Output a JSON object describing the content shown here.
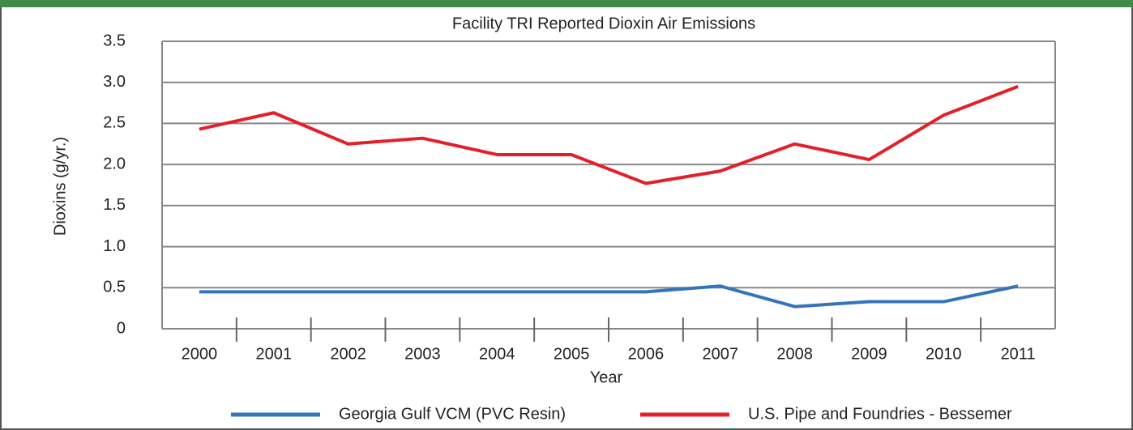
{
  "chart_data": {
    "type": "line",
    "title": "Facility TRI Reported Dioxin Air Emissions",
    "x_label": "Year",
    "y_label": "Dioxins (g/yr.)",
    "categories": [
      "2000",
      "2001",
      "2002",
      "2003",
      "2004",
      "2005",
      "2006",
      "2007",
      "2008",
      "2009",
      "2010",
      "2011"
    ],
    "series": [
      {
        "name": "Georgia Gulf VCM (PVC Resin)",
        "color": "#3474bc",
        "values": [
          0.45,
          0.45,
          0.45,
          0.45,
          0.45,
          0.45,
          0.45,
          0.52,
          0.27,
          0.33,
          0.33,
          0.52
        ]
      },
      {
        "name": "U.S. Pipe and Foundries - Bessemer",
        "color": "#e3202a",
        "values": [
          2.43,
          2.63,
          2.25,
          2.32,
          2.12,
          2.12,
          1.77,
          1.92,
          2.25,
          2.06,
          2.6,
          2.95
        ]
      }
    ],
    "ylim": [
      0,
      3.5
    ],
    "yticks": [
      0,
      0.5,
      {
        "value": 1,
        "label": "1.0"
      },
      1.5,
      {
        "value": 2,
        "label": "2.0"
      },
      2.5,
      {
        "value": 3,
        "label": "3.0"
      },
      3.5
    ],
    "grid": true,
    "legend": "bottom"
  }
}
